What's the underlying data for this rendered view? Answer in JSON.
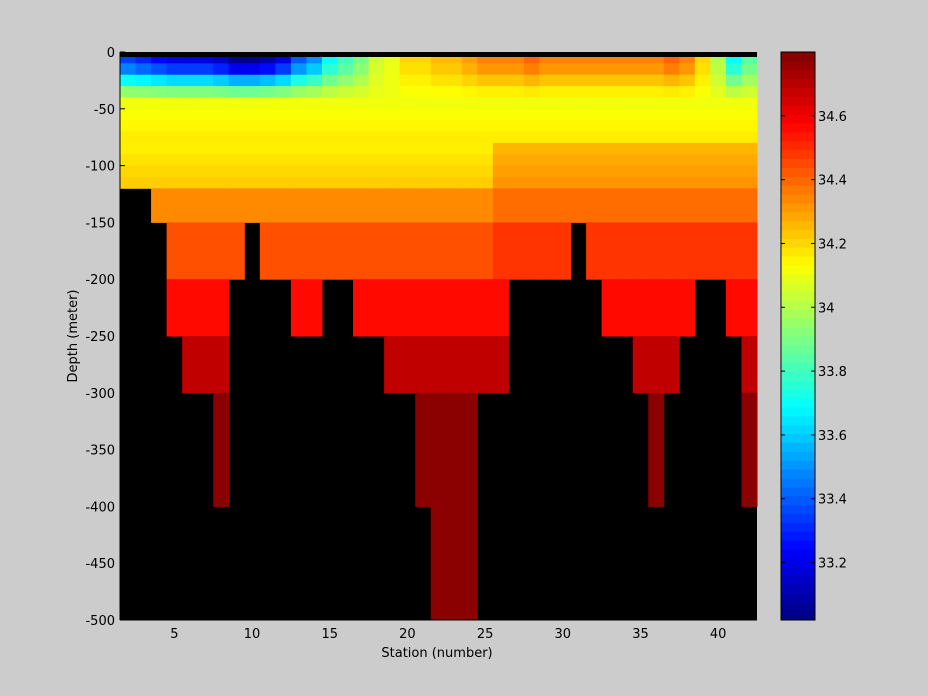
{
  "figure": {
    "background": "#cccccc"
  },
  "chart_data": {
    "type": "heatmap",
    "title": "",
    "xlabel": "Station (number)",
    "ylabel": "Depth (meter)",
    "xlim": [
      1.5,
      42.5
    ],
    "ylim": [
      -500,
      0
    ],
    "xticks": [
      5,
      10,
      15,
      20,
      25,
      30,
      35,
      40
    ],
    "yticks": [
      0,
      -50,
      -100,
      -150,
      -200,
      -250,
      -300,
      -350,
      -400,
      -450,
      -500
    ],
    "stations": [
      2,
      3,
      4,
      5,
      6,
      7,
      8,
      9,
      10,
      11,
      12,
      13,
      14,
      15,
      16,
      17,
      18,
      19,
      20,
      21,
      22,
      23,
      24,
      25,
      26,
      27,
      28,
      29,
      30,
      31,
      32,
      33,
      34,
      35,
      36,
      37,
      38,
      39,
      40,
      41,
      42
    ],
    "depth_levels": [
      -10,
      -20,
      -30,
      -40,
      -50,
      -60,
      -70,
      -80,
      -90,
      -100,
      -110,
      -120,
      -150,
      -200,
      -250,
      -300,
      -400,
      -500
    ],
    "max_depth": [
      -125,
      -125,
      -150,
      -250,
      -300,
      -300,
      -400,
      -200,
      -150,
      -200,
      -200,
      -250,
      -250,
      -200,
      -200,
      -250,
      -250,
      -300,
      -300,
      -400,
      -500,
      -500,
      -500,
      -300,
      -300,
      -200,
      -200,
      -200,
      -200,
      -150,
      -200,
      -250,
      -250,
      -300,
      -400,
      -300,
      -250,
      -200,
      -200,
      -250,
      -400
    ],
    "surface_values": [
      33.35,
      33.3,
      33.25,
      33.2,
      33.2,
      33.2,
      33.15,
      33.05,
      33.05,
      33.1,
      33.2,
      33.4,
      33.5,
      33.7,
      33.8,
      33.9,
      34.05,
      34.1,
      34.2,
      34.2,
      34.25,
      34.25,
      34.3,
      34.35,
      34.35,
      34.35,
      34.4,
      34.35,
      34.35,
      34.35,
      34.35,
      34.35,
      34.35,
      34.35,
      34.35,
      34.4,
      34.35,
      34.2,
      34.0,
      33.7,
      33.85
    ],
    "colorbar": {
      "range": [
        33.02,
        34.8
      ],
      "ticks": [
        33.2,
        33.4,
        33.6,
        33.8,
        34,
        34.2,
        34.4,
        34.6
      ],
      "tick_labels": [
        "33.2",
        "33.4",
        "33.6",
        "33.8",
        "34",
        "34.2",
        "34.4",
        "34.6"
      ],
      "colormap": "jet"
    },
    "no_data_color": "#000000",
    "grid": false,
    "legend": "colorbar-right"
  }
}
